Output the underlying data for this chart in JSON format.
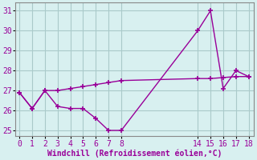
{
  "xlabel": "Windchill (Refroidissement éolien,°C)",
  "line1_x": [
    0,
    1,
    2,
    3,
    4,
    5,
    6,
    7,
    8,
    14,
    15,
    16,
    17,
    18
  ],
  "line1_y": [
    26.9,
    26.1,
    27.0,
    26.2,
    26.1,
    26.1,
    25.6,
    25.0,
    25.0,
    30.0,
    31.0,
    27.1,
    28.0,
    27.7
  ],
  "line2_x": [
    0,
    1,
    2,
    3,
    4,
    5,
    6,
    7,
    8,
    14,
    15,
    16,
    17,
    18
  ],
  "line2_y": [
    26.9,
    26.1,
    27.0,
    27.0,
    27.1,
    27.2,
    27.3,
    27.4,
    27.5,
    27.6,
    27.6,
    27.65,
    27.7,
    27.7
  ],
  "line_color": "#990099",
  "bg_color": "#d8f0f0",
  "grid_color": "#aacaca",
  "tick_label_color": "#990099",
  "xlabel_color": "#990099",
  "ylim": [
    24.7,
    31.4
  ],
  "xlim": [
    -0.3,
    18.4
  ],
  "yticks": [
    25,
    26,
    27,
    28,
    29,
    30,
    31
  ],
  "xticks": [
    0,
    1,
    2,
    3,
    4,
    5,
    6,
    7,
    8,
    14,
    15,
    16,
    17,
    18
  ],
  "marker": "+",
  "markersize": 5,
  "linewidth": 1.0,
  "tick_fontsize": 7,
  "xlabel_fontsize": 7
}
